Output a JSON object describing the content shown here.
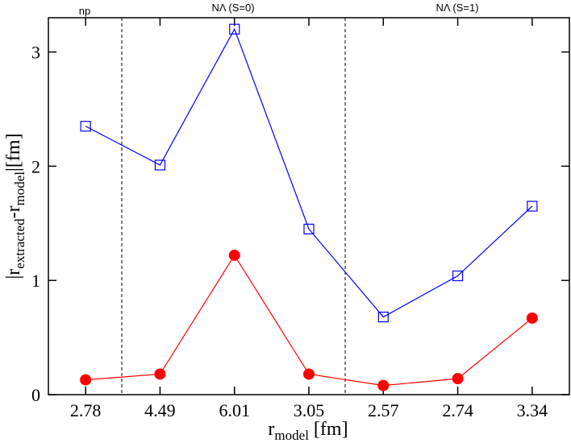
{
  "chart_data": {
    "type": "line",
    "categories": [
      "2.78",
      "4.49",
      "6.01",
      "3.05",
      "2.57",
      "2.74",
      "3.34"
    ],
    "series": [
      {
        "color": "#0000ff",
        "marker": "square-open",
        "values": [
          2.35,
          2.01,
          3.2,
          1.45,
          0.68,
          1.04,
          1.65
        ]
      },
      {
        "color": "#ff0000",
        "marker": "circle-filled",
        "values": [
          0.13,
          0.18,
          1.22,
          0.18,
          0.08,
          0.14,
          0.67
        ]
      }
    ],
    "ylim": [
      0,
      3.3
    ],
    "yticks": [
      0,
      1,
      2,
      3
    ],
    "x_label": [
      "r",
      "model",
      " [fm]"
    ],
    "y_label": [
      "|r",
      "extracted",
      "-r",
      "model",
      "|[fm]"
    ],
    "annotations": [
      "np",
      "NΛ (S=0)",
      "NΛ (S=1)"
    ]
  }
}
